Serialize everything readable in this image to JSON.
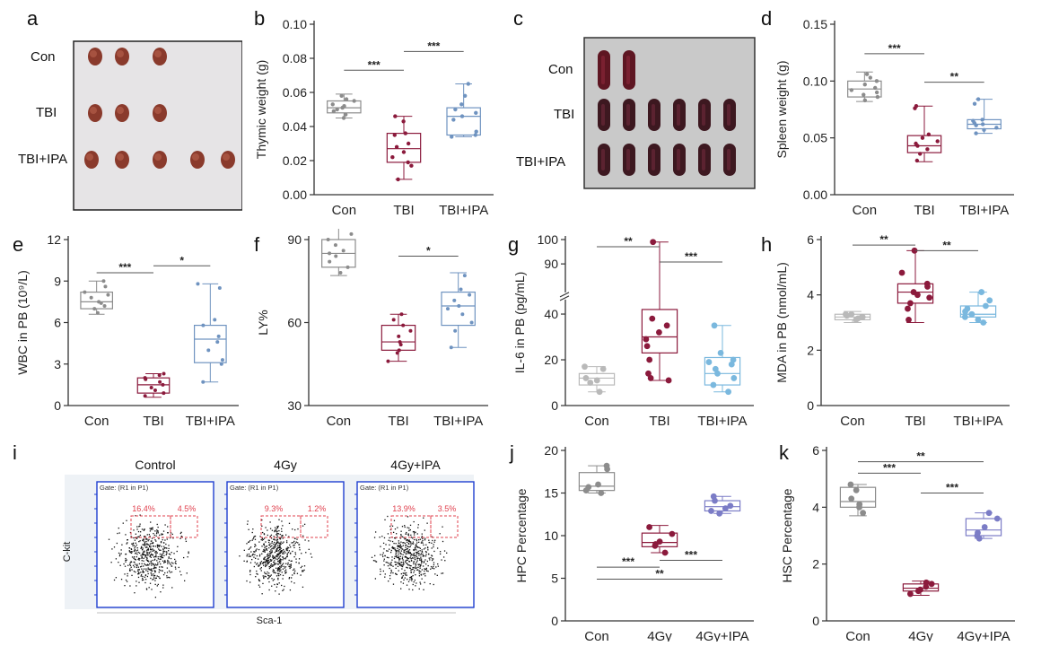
{
  "panel_letters": [
    "a",
    "b",
    "c",
    "d",
    "e",
    "f",
    "g",
    "h",
    "i",
    "j",
    "k"
  ],
  "photo_a": {
    "row_labels": [
      "Con",
      "TBI",
      "TBI+IPA"
    ],
    "counts": [
      3,
      3,
      5
    ]
  },
  "photo_c": {
    "row_labels": [
      "Con",
      "TBI",
      "TBI+IPA"
    ],
    "counts": [
      2,
      6,
      6
    ]
  },
  "flow_i": {
    "titles": [
      "Control",
      "4Gy",
      "4Gy+IPA"
    ],
    "gate": "Gate: (R1 in P1)",
    "left_pct": [
      "16.4%",
      "9.3%",
      "13.9%"
    ],
    "right_pct": [
      "4.5%",
      "1.2%",
      "3.5%"
    ],
    "xaxis": "Sca-1",
    "yaxis": "C-kit"
  },
  "colors": {
    "con": "#8c8c8c",
    "tbi": "#8b1a3c",
    "ipa_blue": "#6f93c0",
    "ipa_light": "#7ab8de",
    "ipa_purple": "#7b7cc6",
    "gate": "#e0404e",
    "flow_frame": "#1f3fd0"
  },
  "chart_data": [
    {
      "id": "b",
      "type": "box",
      "ylabel": "Thymic weight (g)",
      "categories": [
        "Con",
        "TBI",
        "TBI+IPA"
      ],
      "ylim": [
        0,
        0.1
      ],
      "yticks": [
        0.0,
        0.02,
        0.04,
        0.06,
        0.08,
        0.1
      ],
      "tick_labels": [
        "0.00",
        "0.02",
        "0.04",
        "0.06",
        "0.08",
        "0.10"
      ],
      "boxes": [
        {
          "min": 0.045,
          "q1": 0.048,
          "median": 0.051,
          "q3": 0.055,
          "max": 0.059
        },
        {
          "min": 0.009,
          "q1": 0.019,
          "median": 0.027,
          "q3": 0.036,
          "max": 0.046
        },
        {
          "min": 0.034,
          "q1": 0.035,
          "median": 0.046,
          "q3": 0.051,
          "max": 0.065
        }
      ],
      "points": [
        [
          0.045,
          0.047,
          0.049,
          0.05,
          0.051,
          0.052,
          0.053,
          0.055,
          0.056,
          0.058
        ],
        [
          0.009,
          0.017,
          0.019,
          0.022,
          0.025,
          0.028,
          0.03,
          0.035,
          0.036,
          0.043,
          0.046
        ],
        [
          0.034,
          0.035,
          0.037,
          0.044,
          0.046,
          0.048,
          0.05,
          0.053,
          0.058,
          0.065
        ]
      ],
      "sig": [
        {
          "from": 0,
          "to": 1,
          "y": 0.073,
          "label": "***"
        },
        {
          "from": 1,
          "to": 2,
          "y": 0.084,
          "label": "***"
        }
      ]
    },
    {
      "id": "d",
      "type": "box",
      "ylabel": "Spleen weight (g)",
      "categories": [
        "Con",
        "TBI",
        "TBI+IPA"
      ],
      "ylim": [
        0,
        0.15
      ],
      "yticks": [
        0.0,
        0.05,
        0.1,
        0.15
      ],
      "tick_labels": [
        "0.00",
        "0.05",
        "0.10",
        "0.15"
      ],
      "boxes": [
        {
          "min": 0.082,
          "q1": 0.086,
          "median": 0.093,
          "q3": 0.1,
          "max": 0.108
        },
        {
          "min": 0.029,
          "q1": 0.037,
          "median": 0.043,
          "q3": 0.052,
          "max": 0.078
        },
        {
          "min": 0.054,
          "q1": 0.058,
          "median": 0.062,
          "q3": 0.066,
          "max": 0.084
        }
      ],
      "points": [
        [
          0.083,
          0.086,
          0.088,
          0.09,
          0.092,
          0.094,
          0.097,
          0.1,
          0.103,
          0.106
        ],
        [
          0.03,
          0.036,
          0.04,
          0.043,
          0.045,
          0.047,
          0.05,
          0.053,
          0.076,
          0.078
        ],
        [
          0.054,
          0.057,
          0.059,
          0.061,
          0.062,
          0.063,
          0.065,
          0.066,
          0.08,
          0.084
        ]
      ],
      "sig": [
        {
          "from": 0,
          "to": 1,
          "y": 0.124,
          "label": "***"
        },
        {
          "from": 1,
          "to": 2,
          "y": 0.099,
          "label": "**"
        }
      ]
    },
    {
      "id": "e",
      "type": "box",
      "ylabel": "WBC in PB (10⁹/L)",
      "categories": [
        "Con",
        "TBI",
        "TBI+IPA"
      ],
      "ylim": [
        0,
        12
      ],
      "yticks": [
        0,
        3,
        6,
        9,
        12
      ],
      "tick_labels": [
        "0",
        "3",
        "6",
        "9",
        "12"
      ],
      "boxes": [
        {
          "min": 6.6,
          "q1": 7.0,
          "median": 7.5,
          "q3": 8.2,
          "max": 9.0
        },
        {
          "min": 0.6,
          "q1": 0.9,
          "median": 1.5,
          "q3": 2.0,
          "max": 2.3
        },
        {
          "min": 1.7,
          "q1": 3.1,
          "median": 4.8,
          "q3": 5.8,
          "max": 8.8
        }
      ],
      "points": [
        [
          6.7,
          7.0,
          7.2,
          7.4,
          7.5,
          7.8,
          8.0,
          8.2,
          8.6,
          9.0
        ],
        [
          0.7,
          0.9,
          1.1,
          1.3,
          1.5,
          1.7,
          1.9,
          2.0,
          2.2,
          2.3
        ],
        [
          1.7,
          3.0,
          3.3,
          4.0,
          4.6,
          5.0,
          5.8,
          6.2,
          8.5,
          8.8
        ]
      ],
      "sig": [
        {
          "from": 0,
          "to": 1,
          "y": 9.6,
          "label": "***"
        },
        {
          "from": 1,
          "to": 2,
          "y": 10.1,
          "label": "*"
        }
      ]
    },
    {
      "id": "f",
      "type": "box",
      "ylabel": "LY%",
      "categories": [
        "Con",
        "TBI",
        "TBI+IPA"
      ],
      "ylim": [
        30,
        90
      ],
      "yticks": [
        30,
        60,
        90
      ],
      "tick_labels": [
        "30",
        "60",
        "90"
      ],
      "boxes": [
        {
          "min": 77,
          "q1": 80,
          "median": 85,
          "q3": 90,
          "max": 96
        },
        {
          "min": 46,
          "q1": 50,
          "median": 53,
          "q3": 59,
          "max": 63
        },
        {
          "min": 51,
          "q1": 59,
          "median": 66,
          "q3": 71,
          "max": 78
        }
      ],
      "points": [
        [
          78,
          80,
          82,
          84,
          85,
          86,
          88,
          90,
          92,
          95
        ],
        [
          46,
          49,
          50,
          52,
          53,
          55,
          57,
          59,
          61,
          63
        ],
        [
          51,
          57,
          60,
          63,
          65,
          66,
          68,
          70,
          72,
          77
        ]
      ],
      "sig": [
        {
          "from": 0,
          "to": 1,
          "y": 100,
          "label": "***"
        },
        {
          "from": 1,
          "to": 2,
          "y": 84,
          "label": "*"
        }
      ]
    },
    {
      "id": "g",
      "type": "box",
      "ylabel": "IL-6 in PB (pg/mL)",
      "categories": [
        "Con",
        "TBI",
        "TBI+IPA"
      ],
      "broken_axis": true,
      "tick_labels": [
        "0",
        "20",
        "40",
        "90",
        "100"
      ],
      "boxes": [
        {
          "min": 6,
          "q1": 9,
          "median": 12,
          "q3": 14,
          "max": 17
        },
        {
          "min": 11,
          "q1": 23,
          "median": 30,
          "q3": 42,
          "max": 99
        },
        {
          "min": 6,
          "q1": 9,
          "median": 14,
          "q3": 21,
          "max": 35
        }
      ],
      "points": [
        [
          6,
          10,
          11,
          12,
          16,
          17
        ],
        [
          11,
          12,
          14,
          20,
          26,
          29,
          32,
          35,
          38,
          99
        ],
        [
          6,
          9,
          12,
          14,
          16,
          18,
          19,
          20,
          23,
          35
        ]
      ],
      "sig": [
        {
          "from": 0,
          "to": 1,
          "label": "**"
        },
        {
          "from": 1,
          "to": 2,
          "label": "***"
        }
      ]
    },
    {
      "id": "h",
      "type": "box",
      "ylabel": "MDA in PB (nmol/mL)",
      "categories": [
        "Con",
        "TBI",
        "TBI+IPA"
      ],
      "ylim": [
        0,
        6
      ],
      "yticks": [
        0,
        2,
        4,
        6
      ],
      "tick_labels": [
        "0",
        "2",
        "4",
        "6"
      ],
      "boxes": [
        {
          "min": 3.0,
          "q1": 3.1,
          "median": 3.2,
          "q3": 3.3,
          "max": 3.4
        },
        {
          "min": 3.0,
          "q1": 3.7,
          "median": 4.1,
          "q3": 4.4,
          "max": 5.6
        },
        {
          "min": 3.0,
          "q1": 3.2,
          "median": 3.3,
          "q3": 3.6,
          "max": 4.1
        }
      ],
      "points": [
        [
          3.1,
          3.15,
          3.2,
          3.2,
          3.25,
          3.3,
          3.3
        ],
        [
          3.1,
          3.5,
          3.7,
          3.9,
          4.0,
          4.1,
          4.3,
          4.4,
          4.8,
          5.6
        ],
        [
          3.0,
          3.1,
          3.2,
          3.3,
          3.3,
          3.4,
          3.5,
          3.6,
          3.8,
          4.1
        ]
      ],
      "sig": [
        {
          "from": 0,
          "to": 1,
          "y": 5.8,
          "label": "**"
        },
        {
          "from": 1,
          "to": 2,
          "y": 5.6,
          "label": "**"
        }
      ]
    },
    {
      "id": "j",
      "type": "box",
      "ylabel": "HPC Percentage",
      "categories": [
        "Con",
        "4Gy",
        "4Gy+IPA"
      ],
      "ylim": [
        0,
        20
      ],
      "yticks": [
        0,
        5,
        10,
        15,
        20
      ],
      "tick_labels": [
        "0",
        "5",
        "10",
        "15",
        "20"
      ],
      "boxes": [
        {
          "min": 15.0,
          "q1": 15.3,
          "median": 15.8,
          "q3": 17.4,
          "max": 18.2
        },
        {
          "min": 8.0,
          "q1": 8.7,
          "median": 9.2,
          "q3": 10.3,
          "max": 11.2
        },
        {
          "min": 12.6,
          "q1": 12.9,
          "median": 13.4,
          "q3": 14.1,
          "max": 14.6
        }
      ],
      "points": [
        [
          15.0,
          15.3,
          15.7,
          16.0,
          17.8,
          18.2
        ],
        [
          8.0,
          8.8,
          9.0,
          9.3,
          10.2,
          11.0
        ],
        [
          12.6,
          12.9,
          13.2,
          13.5,
          14.1,
          14.6
        ]
      ],
      "sig": [
        {
          "from": 0,
          "to": 1,
          "y": 6.3,
          "label": "***"
        },
        {
          "from": 1,
          "to": 2,
          "y": 7.1,
          "label": "***"
        },
        {
          "from": 0,
          "to": 2,
          "y": 4.9,
          "label": "**"
        }
      ]
    },
    {
      "id": "k",
      "type": "box",
      "ylabel": "HSC Percentage",
      "categories": [
        "Con",
        "4Gy",
        "4Gy+IPA"
      ],
      "ylim": [
        0,
        6
      ],
      "yticks": [
        0,
        2,
        4,
        6
      ],
      "tick_labels": [
        "0",
        "2",
        "4",
        "6"
      ],
      "boxes": [
        {
          "min": 3.7,
          "q1": 4.0,
          "median": 4.2,
          "q3": 4.7,
          "max": 4.8
        },
        {
          "min": 0.9,
          "q1": 1.05,
          "median": 1.15,
          "q3": 1.3,
          "max": 1.4
        },
        {
          "min": 2.9,
          "q1": 3.0,
          "median": 3.2,
          "q3": 3.6,
          "max": 3.8
        }
      ],
      "points": [
        [
          3.8,
          4.0,
          4.1,
          4.3,
          4.6,
          4.8
        ],
        [
          0.95,
          1.05,
          1.1,
          1.2,
          1.3,
          1.35
        ],
        [
          2.9,
          3.0,
          3.1,
          3.3,
          3.6,
          3.8
        ]
      ],
      "sig": [
        {
          "from": 0,
          "to": 2,
          "y": 5.6,
          "label": "**"
        },
        {
          "from": 0,
          "to": 1,
          "y": 5.2,
          "label": "***"
        },
        {
          "from": 1,
          "to": 2,
          "y": 4.5,
          "label": "***"
        }
      ]
    }
  ]
}
